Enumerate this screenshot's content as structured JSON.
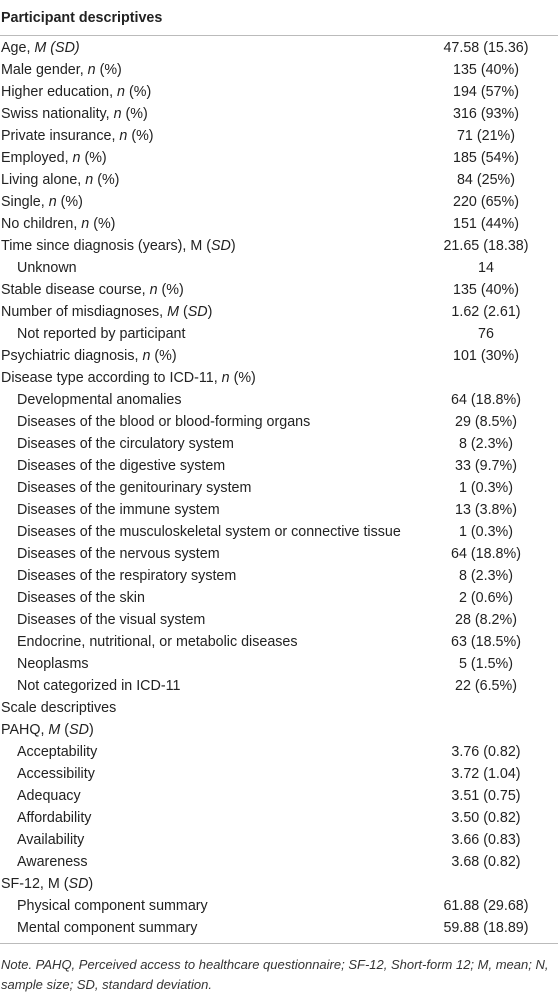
{
  "header": {
    "title": "Participant descriptives"
  },
  "table": {
    "rows": [
      {
        "label": [
          "Age, ",
          "M (SD)"
        ],
        "value": "47.58 (15.36)"
      },
      {
        "label": [
          "Male gender, ",
          "n",
          " (%)"
        ],
        "value": "135 (40%)"
      },
      {
        "label": [
          "Higher education, ",
          "n",
          " (%)"
        ],
        "value": "194 (57%)"
      },
      {
        "label": [
          "Swiss nationality, ",
          "n",
          " (%)"
        ],
        "value": "316 (93%)"
      },
      {
        "label": [
          "Private insurance, ",
          "n",
          " (%)"
        ],
        "value": "71 (21%)"
      },
      {
        "label": [
          "Employed, ",
          "n",
          " (%)"
        ],
        "value": "185 (54%)"
      },
      {
        "label": [
          "Living alone, ",
          "n",
          " (%)"
        ],
        "value": "84 (25%)"
      },
      {
        "label": [
          "Single, ",
          "n",
          " (%)"
        ],
        "value": "220 (65%)"
      },
      {
        "label": [
          "No children, ",
          "n",
          " (%)"
        ],
        "value": "151 (44%)"
      },
      {
        "label": [
          "Time since diagnosis (years), M (",
          "SD",
          ")"
        ],
        "value": "21.65 (18.38)",
        "items": [
          {
            "label": [
              "Unknown"
            ],
            "value": "14"
          }
        ]
      },
      {
        "label": [
          "Stable disease course, ",
          "n",
          " (%)"
        ],
        "value": "135 (40%)"
      },
      {
        "label": [
          "Number of misdiagnoses, ",
          "M",
          " (",
          "SD",
          ")"
        ],
        "value": "1.62 (2.61)",
        "items": [
          {
            "label": [
              "Not reported by participant"
            ],
            "value": "76"
          }
        ]
      },
      {
        "label": [
          "Psychiatric diagnosis, ",
          "n",
          " (%)"
        ],
        "value": "101 (30%)"
      },
      {
        "label": [
          "Disease type according to ICD-11, ",
          "n",
          " (%)"
        ],
        "items": [
          {
            "label": [
              "Developmental anomalies"
            ],
            "value": "64 (18.8%)"
          },
          {
            "label": [
              "Diseases of the blood or blood-forming organs"
            ],
            "value": "29 (8.5%)"
          },
          {
            "label": [
              "Diseases of the circulatory system"
            ],
            "value": "8 (2.3%)"
          },
          {
            "label": [
              "Diseases of the digestive system"
            ],
            "value": "33 (9.7%)"
          },
          {
            "label": [
              "Diseases of the genitourinary system"
            ],
            "value": "1 (0.3%)"
          },
          {
            "label": [
              "Diseases of the immune system"
            ],
            "value": "13 (3.8%)"
          },
          {
            "label": [
              "Diseases of the musculoskeletal system or connective tissue"
            ],
            "value": "1 (0.3%)"
          },
          {
            "label": [
              "Diseases of the nervous system"
            ],
            "value": "64 (18.8%)"
          },
          {
            "label": [
              "Diseases of the respiratory system"
            ],
            "value": "8 (2.3%)"
          },
          {
            "label": [
              "Diseases of the skin"
            ],
            "value": "2 (0.6%)"
          },
          {
            "label": [
              "Diseases of the visual system"
            ],
            "value": "28 (8.2%)"
          },
          {
            "label": [
              "Endocrine, nutritional, or metabolic diseases"
            ],
            "value": "63 (18.5%)"
          },
          {
            "label": [
              "Neoplasms"
            ],
            "value": "5 (1.5%)"
          },
          {
            "label": [
              "Not categorized in ICD-11"
            ],
            "value": "22 (6.5%)"
          }
        ]
      },
      {
        "label": [
          "Scale descriptives"
        ]
      },
      {
        "label": [
          "PAHQ, ",
          "M",
          " (",
          "SD",
          ")"
        ],
        "items": [
          {
            "label": [
              "Acceptability"
            ],
            "value": "3.76 (0.82)"
          },
          {
            "label": [
              "Accessibility"
            ],
            "value": "3.72 (1.04)"
          },
          {
            "label": [
              "Adequacy"
            ],
            "value": "3.51 (0.75)"
          },
          {
            "label": [
              "Affordability"
            ],
            "value": "3.50 (0.82)"
          },
          {
            "label": [
              "Availability"
            ],
            "value": "3.66 (0.83)"
          },
          {
            "label": [
              "Awareness"
            ],
            "value": "3.68 (0.82)"
          }
        ]
      },
      {
        "label": [
          "SF-12, M (",
          "SD",
          ")"
        ],
        "items": [
          {
            "label": [
              "Physical component summary"
            ],
            "value": "61.88 (29.68)"
          },
          {
            "label": [
              "Mental component summary"
            ],
            "value": "59.88 (18.89)"
          }
        ]
      }
    ]
  },
  "note": "Note. PAHQ, Perceived access to healthcare questionnaire; SF-12, Short-form 12; M, mean; N, sample size; SD, standard deviation."
}
